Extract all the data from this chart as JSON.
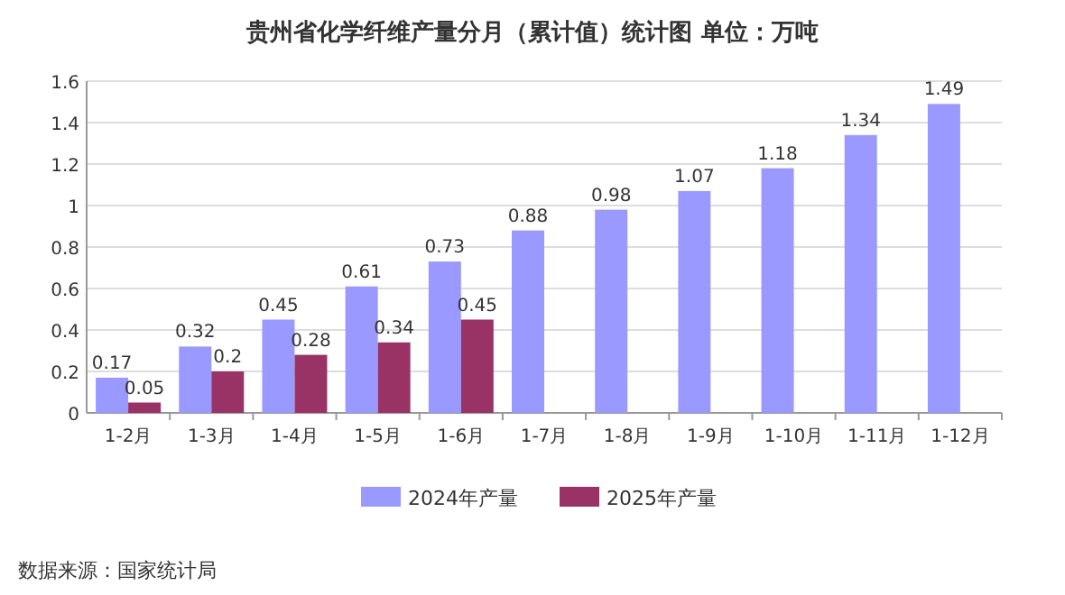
{
  "chart_data": {
    "type": "bar",
    "title": "贵州省化学纤维产量分月（累计值）统计图 单位：万吨",
    "categories": [
      "1-2月",
      "1-3月",
      "1-4月",
      "1-5月",
      "1-6月",
      "1-7月",
      "1-8月",
      "1-9月",
      "1-10月",
      "1-11月",
      "1-12月"
    ],
    "series": [
      {
        "name": "2024年产量",
        "color": "#9999ff",
        "values": [
          0.17,
          0.32,
          0.45,
          0.61,
          0.73,
          0.88,
          0.98,
          1.07,
          1.18,
          1.34,
          1.49
        ]
      },
      {
        "name": "2025年产量",
        "color": "#993366",
        "values": [
          0.05,
          0.2,
          0.28,
          0.34,
          0.45,
          null,
          null,
          null,
          null,
          null,
          null
        ]
      }
    ],
    "ylim": [
      0,
      1.6
    ],
    "yticks": [
      0,
      0.2,
      0.4,
      0.6,
      0.8,
      1,
      1.2,
      1.4,
      1.6
    ],
    "grid": "y",
    "legend": "bottom",
    "data_labels": true,
    "annotations": [
      "数据来源：国家统计局"
    ]
  }
}
